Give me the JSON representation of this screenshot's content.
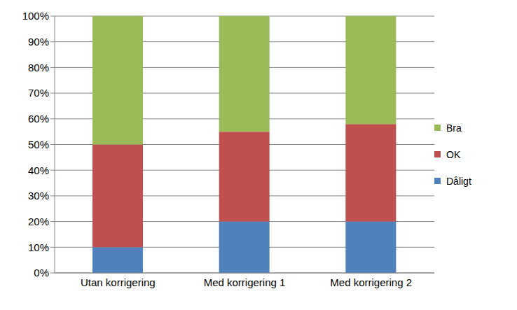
{
  "chart_data": {
    "type": "bar",
    "stacked": true,
    "grid": true,
    "legend": "right",
    "categories": [
      "Utan korrigering",
      "Med korrigering 1",
      "Med korrigering 2"
    ],
    "series": [
      {
        "name": "Dåligt",
        "color": "#4f81bd",
        "values": [
          10,
          20,
          20
        ]
      },
      {
        "name": "OK",
        "color": "#c0504d",
        "values": [
          40,
          35,
          38
        ]
      },
      {
        "name": "Bra",
        "color": "#9bbb59",
        "values": [
          50,
          45,
          42
        ]
      }
    ],
    "ylim": [
      0,
      100
    ],
    "yticks": [
      {
        "value": 0,
        "label": "0%"
      },
      {
        "value": 10,
        "label": "10%"
      },
      {
        "value": 20,
        "label": "20%"
      },
      {
        "value": 30,
        "label": "30%"
      },
      {
        "value": 40,
        "label": "40%"
      },
      {
        "value": 50,
        "label": "50%"
      },
      {
        "value": 60,
        "label": "60%"
      },
      {
        "value": 70,
        "label": "70%"
      },
      {
        "value": 80,
        "label": "80%"
      },
      {
        "value": 90,
        "label": "90%"
      },
      {
        "value": 100,
        "label": "100%"
      }
    ]
  }
}
